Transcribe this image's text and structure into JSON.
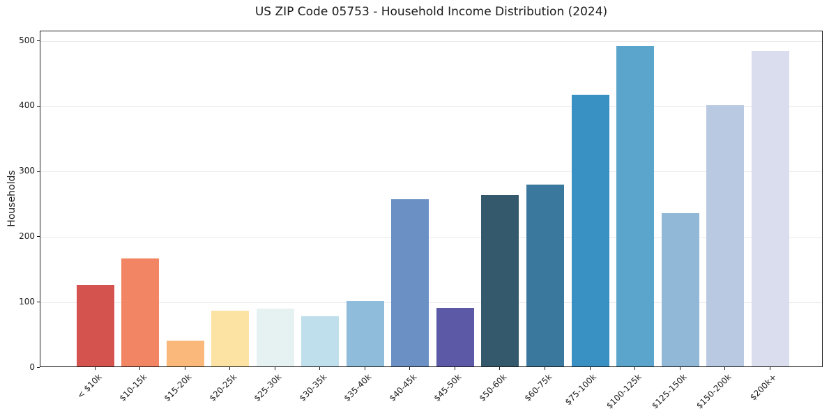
{
  "page": {
    "background": "#ffffff"
  },
  "chart_data": {
    "type": "bar",
    "title": "US ZIP Code 05753 - Household Income Distribution (2024)",
    "ylabel": "Households",
    "xlabel": "",
    "categories": [
      "< $10k",
      "$10-15k",
      "$15-20k",
      "$20-25k",
      "$25-30k",
      "$30-35k",
      "$35-40k",
      "$40-45k",
      "$45-50k",
      "$50-60k",
      "$60-75k",
      "$75-100k",
      "$100-125k",
      "$125-150k",
      "$150-200k",
      "$200k+"
    ],
    "values": [
      125,
      165,
      40,
      85,
      88,
      77,
      100,
      256,
      90,
      262,
      278,
      416,
      490,
      235,
      400,
      483
    ],
    "bar_colors": [
      "#d5534f",
      "#f28563",
      "#fab87a",
      "#fce3a3",
      "#e6f1f2",
      "#bedfeb",
      "#8ebcda",
      "#6b90c4",
      "#5c5aa7",
      "#35596c",
      "#3a789d",
      "#3990c2",
      "#5ba5cc",
      "#92b8d8",
      "#bac9e2",
      "#dadded"
    ],
    "yticks": [
      0,
      100,
      200,
      300,
      400,
      500
    ],
    "ylim": [
      0,
      515
    ],
    "grid": "horizontal-only",
    "gridline_color": "#e9e9ec",
    "axis_color": "#1a1a1a",
    "legend": "none"
  }
}
